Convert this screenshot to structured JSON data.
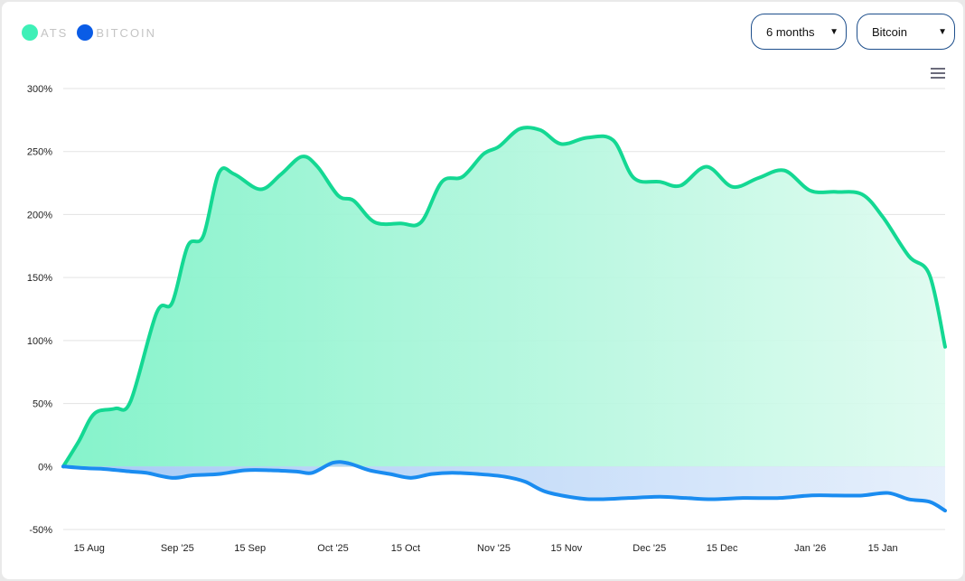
{
  "legend": [
    {
      "label": "ATS",
      "color": "#3ef0b7"
    },
    {
      "label": "BITCOIN",
      "color": "#0a5ce6"
    }
  ],
  "controls": {
    "period": "6 months",
    "asset": "Bitcoin",
    "menu_icon": "hamburger-menu-icon"
  },
  "chart_data": {
    "type": "area",
    "x_axis": {
      "start": "2025-08-10",
      "end": "2026-01-27",
      "ticks": [
        "15 Aug",
        "Sep '25",
        "15 Sep",
        "Oct '25",
        "15 Oct",
        "Nov '25",
        "15 Nov",
        "Dec '25",
        "15 Dec",
        "Jan '26",
        "15 Jan"
      ]
    },
    "ylim": [
      -50,
      300
    ],
    "y_ticks": [
      300,
      250,
      200,
      150,
      100,
      50,
      0,
      -50
    ],
    "y_format": "%",
    "grid": true,
    "series": [
      {
        "name": "ATS",
        "color": "#14d893",
        "x": [
          "2025-08-10",
          "2025-08-13",
          "2025-08-16",
          "2025-08-20",
          "2025-08-23",
          "2025-08-28",
          "2025-08-31",
          "2025-09-03",
          "2025-09-06",
          "2025-09-09",
          "2025-09-12",
          "2025-09-17",
          "2025-09-21",
          "2025-09-25",
          "2025-09-28",
          "2025-10-02",
          "2025-10-05",
          "2025-10-09",
          "2025-10-14",
          "2025-10-18",
          "2025-10-22",
          "2025-10-26",
          "2025-10-30",
          "2025-11-02",
          "2025-11-06",
          "2025-11-10",
          "2025-11-14",
          "2025-11-19",
          "2025-11-24",
          "2025-11-28",
          "2025-12-03",
          "2025-12-07",
          "2025-12-12",
          "2025-12-17",
          "2025-12-22",
          "2025-12-27",
          "2026-01-01",
          "2026-01-06",
          "2026-01-11",
          "2026-01-15",
          "2026-01-20",
          "2026-01-24",
          "2026-01-27"
        ],
        "values": [
          0,
          20,
          42,
          46,
          52,
          122,
          130,
          175,
          183,
          233,
          232,
          220,
          232,
          246,
          238,
          215,
          211,
          194,
          193,
          194,
          226,
          230,
          248,
          254,
          268,
          267,
          256,
          261,
          259,
          229,
          226,
          223,
          238,
          222,
          229,
          235,
          219,
          218,
          216,
          198,
          167,
          152,
          95
        ]
      },
      {
        "name": "BITCOIN",
        "color": "#1a8cf0",
        "x": [
          "2025-08-10",
          "2025-08-15",
          "2025-08-18",
          "2025-08-23",
          "2025-08-26",
          "2025-08-31",
          "2025-09-04",
          "2025-09-09",
          "2025-09-14",
          "2025-09-19",
          "2025-09-24",
          "2025-09-27",
          "2025-10-01",
          "2025-10-04",
          "2025-10-08",
          "2025-10-12",
          "2025-10-16",
          "2025-10-20",
          "2025-10-24",
          "2025-10-29",
          "2025-11-03",
          "2025-11-07",
          "2025-11-11",
          "2025-11-17",
          "2025-11-21",
          "2025-11-27",
          "2025-12-03",
          "2025-12-08",
          "2025-12-13",
          "2025-12-19",
          "2025-12-26",
          "2026-01-01",
          "2026-01-06",
          "2026-01-11",
          "2026-01-16",
          "2026-01-20",
          "2026-01-24",
          "2026-01-27"
        ],
        "values": [
          0,
          -1.5,
          -2,
          -4,
          -5,
          -9,
          -7,
          -6,
          -3,
          -3,
          -4,
          -5,
          3,
          2.5,
          -3,
          -6,
          -9,
          -6,
          -5,
          -6,
          -8,
          -12,
          -20,
          -25,
          -26,
          -25,
          -24,
          -25,
          -26,
          -25,
          -25,
          -23,
          -23,
          -23,
          -21,
          -26,
          -28,
          -35
        ]
      }
    ]
  }
}
